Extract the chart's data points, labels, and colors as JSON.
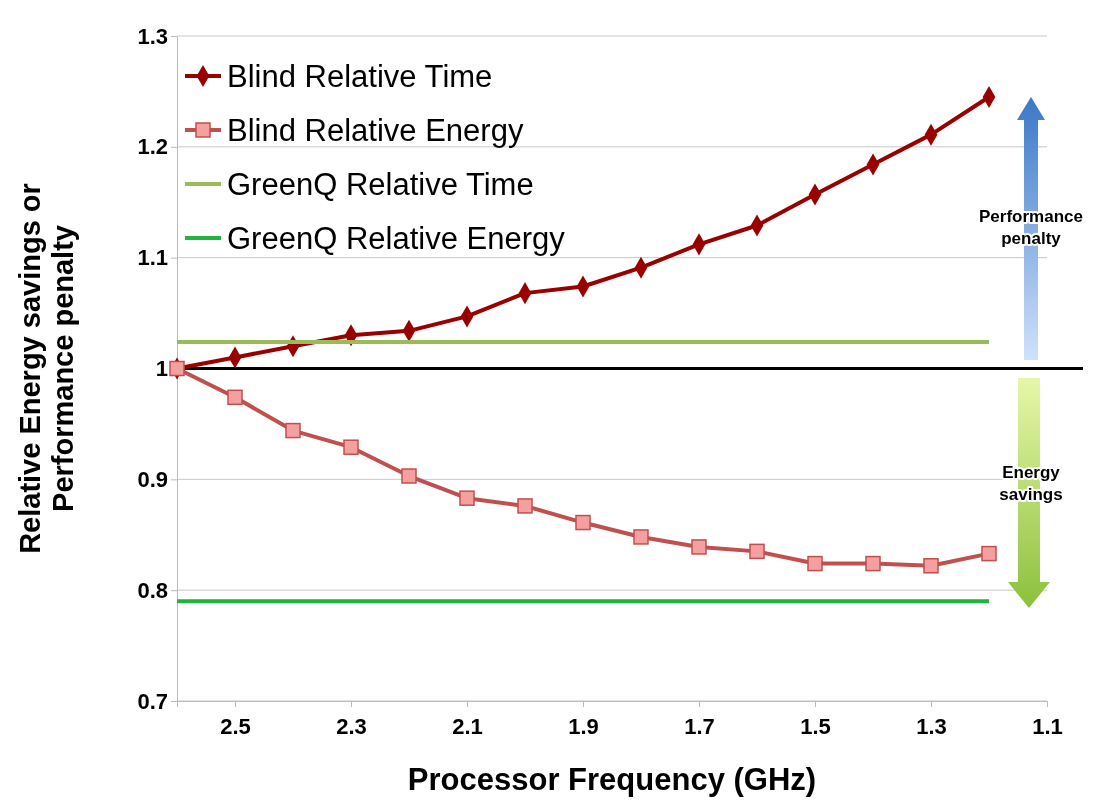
{
  "chart_data": {
    "type": "line",
    "xlabel": "Processor Frequency (GHz)",
    "ylabel": "Relative Energy savings or Performance penalty",
    "x": [
      2.6,
      2.5,
      2.4,
      2.3,
      2.2,
      2.1,
      2.0,
      1.9,
      1.8,
      1.7,
      1.6,
      1.5,
      1.4,
      1.3,
      1.2
    ],
    "series": [
      {
        "name": "Blind Relative Time",
        "color": "#990000",
        "marker": "diamond",
        "values": [
          1.0,
          1.01,
          1.02,
          1.03,
          1.034,
          1.047,
          1.068,
          1.074,
          1.091,
          1.112,
          1.129,
          1.157,
          1.184,
          1.211,
          1.245
        ]
      },
      {
        "name": "Blind Relative Energy",
        "color": "#c0504d",
        "marker": "square",
        "values": [
          1.0,
          0.974,
          0.944,
          0.929,
          0.903,
          0.883,
          0.876,
          0.861,
          0.848,
          0.839,
          0.835,
          0.824,
          0.824,
          0.822,
          0.833
        ]
      },
      {
        "name": "GreenQ Relative Time",
        "color": "#9bbb59",
        "marker": "none",
        "values": [
          1.024,
          1.024,
          1.024,
          1.024,
          1.024,
          1.024,
          1.024,
          1.024,
          1.024,
          1.024,
          1.024,
          1.024,
          1.024,
          1.024,
          1.024
        ]
      },
      {
        "name": "GreenQ Relative Energy",
        "color": "#1fb43c",
        "marker": "none",
        "values": [
          0.79,
          0.79,
          0.79,
          0.79,
          0.79,
          0.79,
          0.79,
          0.79,
          0.79,
          0.79,
          0.79,
          0.79,
          0.79,
          0.79,
          0.79
        ]
      }
    ],
    "xlim": [
      2.6,
      1.1
    ],
    "xticks": [
      {
        "value": 2.6,
        "label": null
      },
      2.5,
      2.3,
      2.1,
      1.9,
      1.7,
      1.5,
      1.3,
      1.1
    ],
    "ylim": [
      0.7,
      1.3
    ],
    "yticks": [
      0.7,
      0.8,
      0.9,
      1,
      1.1,
      1.2,
      1.3
    ],
    "grid": "y",
    "legend": "top left",
    "ref_lines": [
      {
        "axis": "y",
        "value": 1,
        "color": "#000000"
      }
    ],
    "annotations": [
      "Performance penalty",
      "Energy savings"
    ]
  }
}
